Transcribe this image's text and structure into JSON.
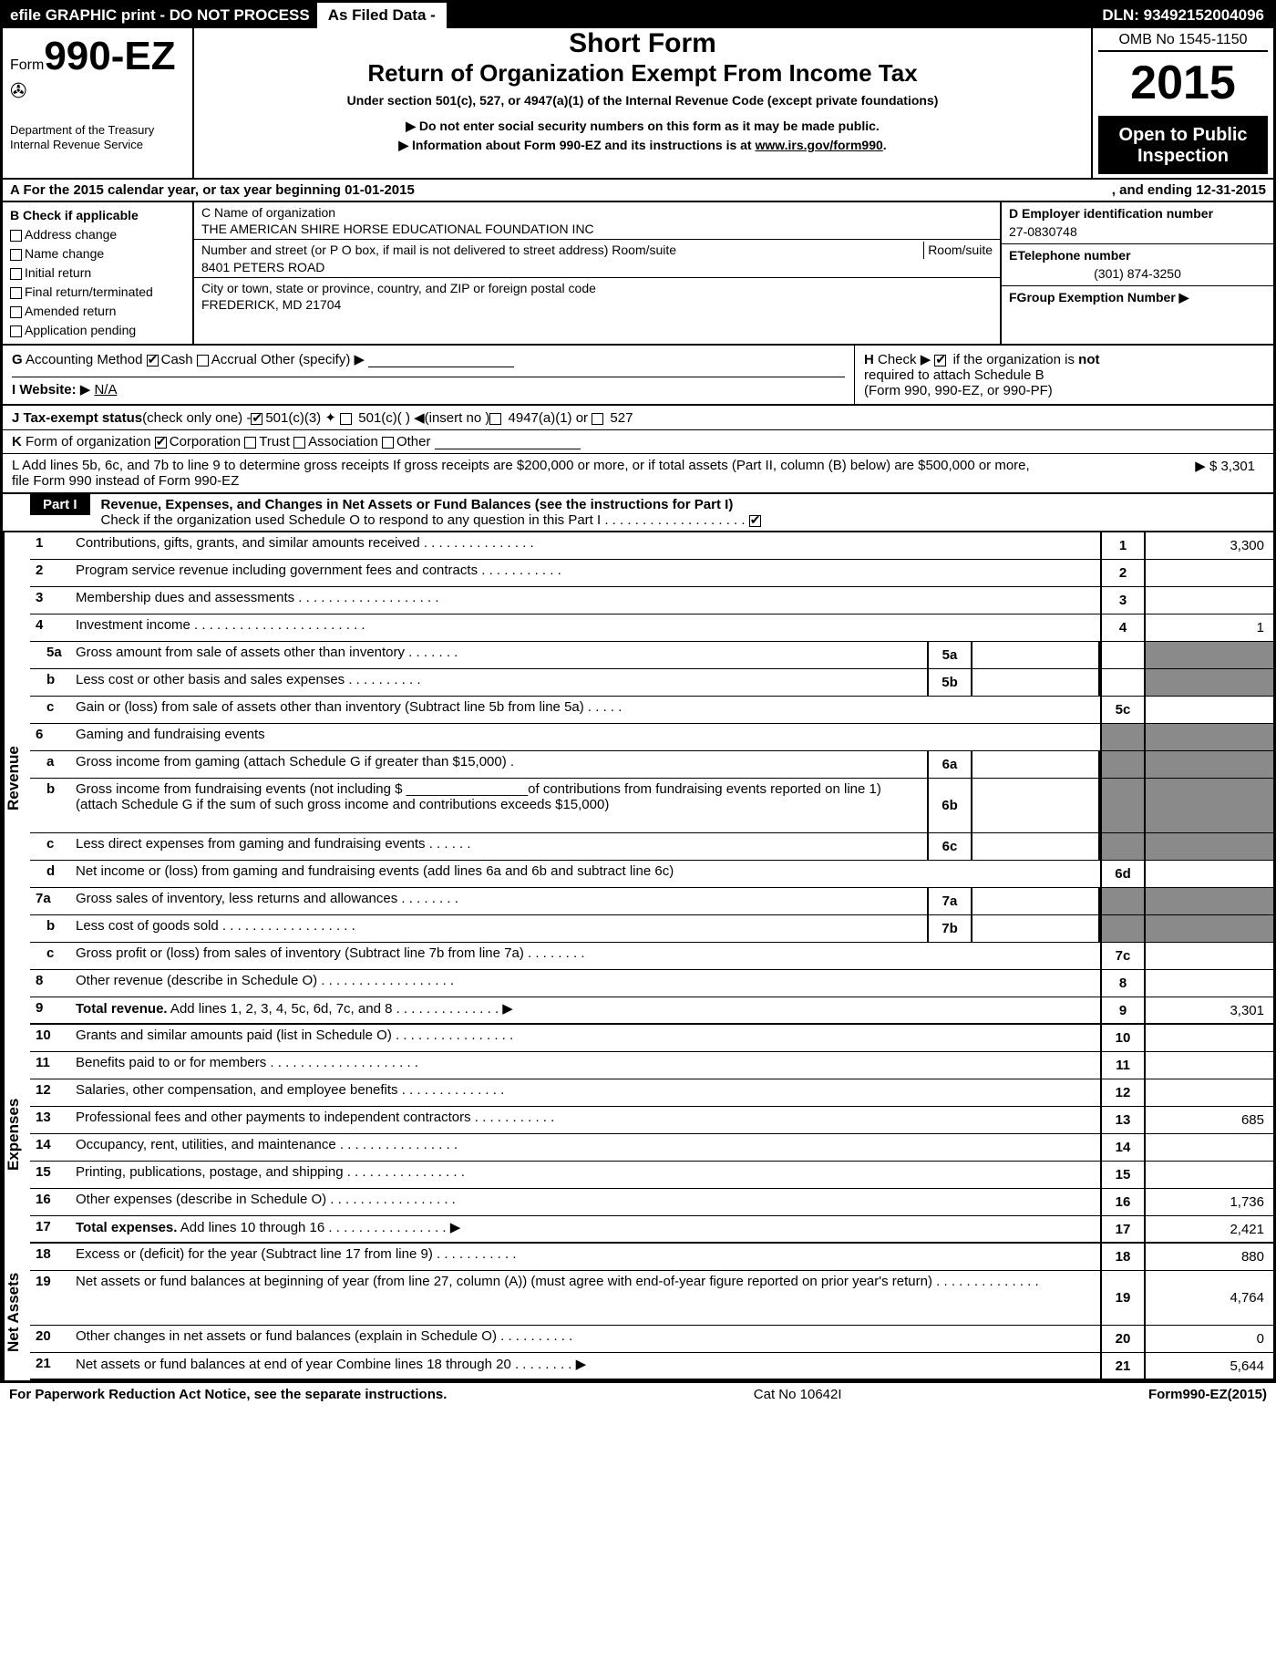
{
  "topbar": {
    "left": "efile GRAPHIC print - DO NOT PROCESS",
    "mid": "As Filed Data -",
    "right": "DLN: 93492152004096"
  },
  "header": {
    "form_prefix": "Form",
    "form_number": "990-EZ",
    "dept1": "Department of the Treasury",
    "dept2": "Internal Revenue Service",
    "short": "Short Form",
    "title": "Return of Organization Exempt From Income Tax",
    "under": "Under section 501(c), 527, or 4947(a)(1) of the Internal Revenue Code (except private foundations)",
    "bullet1": "▶ Do not enter social security numbers on this form as it may be made public.",
    "bullet2_pre": "▶ Information about Form 990-EZ and its instructions is at ",
    "bullet2_link": "www.irs.gov/form990",
    "omb": "OMB No 1545-1150",
    "year": "2015",
    "open": "Open to Public Inspection"
  },
  "rowA": {
    "left": "A  For the 2015 calendar year, or tax year beginning 01-01-2015",
    "right": ", and ending 12-31-2015"
  },
  "B": {
    "title": "B  Check if applicable",
    "items": [
      "Address change",
      "Name change",
      "Initial return",
      "Final return/terminated",
      "Amended return",
      "Application pending"
    ]
  },
  "C": {
    "label1": "C Name of organization",
    "name": "THE AMERICAN SHIRE HORSE EDUCATIONAL FOUNDATION INC",
    "label2": "Number and street (or P  O  box, if mail is not delivered to street address) Room/suite",
    "street": "8401 PETERS ROAD",
    "label3": "City or town, state or province, country, and ZIP or foreign postal code",
    "city": "FREDERICK, MD  21704"
  },
  "D": {
    "label": "D Employer identification number",
    "val": "27-0830748"
  },
  "E": {
    "label": "ETelephone number",
    "val": "(301) 874-3250"
  },
  "F": {
    "label": "FGroup Exemption Number  ▶",
    "val": ""
  },
  "G": "G Accounting Method   ☑Cash  ☐Accrual   Other (specify) ▶",
  "H": {
    "l1": "H   Check ▶ ☑ if the organization is not",
    "l2": "required to attach Schedule B",
    "l3": "(Form 990, 990-EZ, or 990-PF)"
  },
  "I": {
    "label": "I Website: ▶ ",
    "val": "N/A"
  },
  "J": "J Tax-exempt status(check only one) -☑501(c)(3)  ☐ 501(c)(  ) ◀(insert no )☐ 4947(a)(1) or ☐ 527",
  "K": "K Form of organization   ☑Corporation  ☐Trust  ☐Association  ☐Other ",
  "L": {
    "text": "L Add lines 5b, 6c, and 7b to line 9 to determine gross receipts  If gross receipts are $200,000 or more, or if total assets (Part II, column (B) below) are $500,000 or more, file Form 990 instead of Form 990-EZ",
    "val": "▶ $ 3,301"
  },
  "part1": {
    "tab": "Part I",
    "title": "Revenue, Expenses, and Changes in Net Assets or Fund Balances (see the instructions for Part I)",
    "sub": "Check if the organization used Schedule O to respond to any question in this Part I  .  .  .  .  .  .  .  .  .  .  .  .  .  .  .  .  .  .  .  ☑"
  },
  "vlabels": {
    "rev": "Revenue",
    "exp": "Expenses",
    "net": "Net Assets"
  },
  "rows": [
    {
      "n": "1",
      "d": "Contributions, gifts, grants, and similar amounts received     .    .    .    .    .    .    .    .    .    .    .    .    .    .    .",
      "rn": "1",
      "rv": "3,300"
    },
    {
      "n": "2",
      "d": "Program service revenue including government fees and contracts     .    .    .    .    .    .    .    .    .    .    .",
      "rn": "2",
      "rv": ""
    },
    {
      "n": "3",
      "d": "Membership dues and assessments     .    .    .    .    .    .    .    .    .    .    .    .    .    .    .    .    .    .    .",
      "rn": "3",
      "rv": ""
    },
    {
      "n": "4",
      "d": "Investment income     .    .    .    .    .    .    .    .    .    .    .    .    .    .    .    .    .    .    .    .    .    .    .",
      "rn": "4",
      "rv": "1"
    },
    {
      "n": "5a",
      "sub": true,
      "d": "Gross amount from sale of assets other than inventory     .    .    .    .    .    .    .",
      "mc": "5a",
      "shadeR": true
    },
    {
      "n": "b",
      "sub": true,
      "d": "Less  cost or other basis and sales expenses     .    .    .    .    .    .    .    .    .    .",
      "mc": "5b",
      "shadeR": true
    },
    {
      "n": "c",
      "sub": true,
      "d": "Gain or (loss) from sale of assets other than inventory (Subtract line 5b from line 5a)   .    .    .    .    .",
      "rn": "5c",
      "rv": ""
    },
    {
      "n": "6",
      "sub": false,
      "d": "Gaming and fundraising events",
      "shadeR": true,
      "shadeRN": true
    },
    {
      "n": "a",
      "sub": true,
      "d": "Gross income from gaming (attach Schedule G if greater than $15,000)        .",
      "mc": "6a",
      "shadeR": true,
      "shadeRN": true
    },
    {
      "n": "b",
      "sub": true,
      "d": "Gross income from fundraising events (not including $ ________________of contributions from fundraising events reported on line 1) (attach Schedule G if the sum of such gross income and contributions exceeds $15,000)",
      "mc": "6b",
      "shadeR": true,
      "shadeRN": true,
      "tall": true
    },
    {
      "n": "c",
      "sub": true,
      "d": "Less  direct expenses from gaming and fundraising events     .    .    .    .    .    .",
      "mc": "6c",
      "shadeR": true,
      "shadeRN": true
    },
    {
      "n": "d",
      "sub": true,
      "d": "Net income or (loss) from gaming and fundraising events (add lines 6a and 6b and subtract line 6c)",
      "rn": "6d",
      "rv": ""
    },
    {
      "n": "7a",
      "sub": false,
      "d": "Gross sales of inventory, less returns and allowances     .    .    .    .    .    .    .    .",
      "mc": "7a",
      "shadeR": true,
      "shadeRN": true
    },
    {
      "n": "b",
      "sub": true,
      "d": "Less  cost of goods sold     .    .    .    .    .    .    .    .    .    .    .    .    .    .    .    .    .    .",
      "mc": "7b",
      "shadeR": true,
      "shadeRN": true
    },
    {
      "n": "c",
      "sub": true,
      "d": "Gross profit or (loss) from sales of inventory (Subtract line 7b from line 7a)   .    .    .    .    .    .    .    .",
      "rn": "7c",
      "rv": ""
    },
    {
      "n": "8",
      "d": "Other revenue (describe in Schedule O)   .    .    .    .    .    .    .    .    .    .    .    .    .    .    .    .    .    .",
      "rn": "8",
      "rv": ""
    },
    {
      "n": "9",
      "d": "<b>Total revenue.</b> Add lines 1, 2, 3, 4, 5c, 6d, 7c, and 8   .    .    .    .    .    .    .    .    .    .    .    .    .    .   ▶",
      "rn": "9",
      "rv": "3,301",
      "hb": true
    },
    {
      "n": "10",
      "d": "Grants and similar amounts paid (list in Schedule O)  .    .    .    .    .    .    .    .    .    .    .    .    .    .    .    .",
      "rn": "10",
      "rv": ""
    },
    {
      "n": "11",
      "d": "Benefits paid to or for members   .    .    .    .    .    .    .    .    .    .    .    .    .    .    .    .    .    .    .    .",
      "rn": "11",
      "rv": ""
    },
    {
      "n": "12",
      "d": "Salaries, other compensation, and employee benefits     .    .    .    .    .    .    .    .    .    .    .    .    .    .",
      "rn": "12",
      "rv": ""
    },
    {
      "n": "13",
      "d": "Professional fees and other payments to independent contractors     .    .    .    .    .    .    .    .    .    .    .",
      "rn": "13",
      "rv": "685"
    },
    {
      "n": "14",
      "d": "Occupancy, rent, utilities, and maintenance     .    .    .    .    .    .    .    .    .    .    .    .    .    .    .    .",
      "rn": "14",
      "rv": ""
    },
    {
      "n": "15",
      "d": "Printing, publications, postage, and shipping     .    .    .    .    .    .    .    .    .    .    .    .    .    .    .    .",
      "rn": "15",
      "rv": ""
    },
    {
      "n": "16",
      "d": "Other expenses (describe in Schedule O)   .    .    .    .    .    .    .    .    .    .    .    .    .    .    .    .    .",
      "rn": "16",
      "rv": "1,736"
    },
    {
      "n": "17",
      "d": "<b>Total expenses.</b> Add lines 10 through 16   .    .    .    .    .    .    .    .    .    .    .    .    .    .    .    .   ▶",
      "rn": "17",
      "rv": "2,421",
      "hb": true
    },
    {
      "n": "18",
      "d": "Excess or (deficit) for the year (Subtract line 17 from line 9)        .    .    .    .    .    .    .    .    .    .    .",
      "rn": "18",
      "rv": "880"
    },
    {
      "n": "19",
      "d": "Net assets or fund balances at beginning of year (from line 27, column (A)) (must agree with end-of-year figure reported on prior year's return)     .    .    .    .    .    .    .    .    .    .    .    .    .    .",
      "rn": "19",
      "rv": "4,764",
      "tall": true
    },
    {
      "n": "20",
      "d": "Other changes in net assets or fund balances (explain in Schedule O)   .    .    .    .    .    .    .    .    .    .",
      "rn": "20",
      "rv": "0"
    },
    {
      "n": "21",
      "d": "Net assets or fund balances at end of year  Combine lines 18 through 20    .    .    .    .    .    .    .    .   ▶",
      "rn": "21",
      "rv": "5,644",
      "hb": true
    }
  ],
  "footer": {
    "left": "For Paperwork Reduction Act Notice, see the separate instructions.",
    "mid": "Cat No 10642I",
    "right_pre": "Form",
    "right_bold": "990-EZ",
    "right_suf": "(2015)"
  }
}
